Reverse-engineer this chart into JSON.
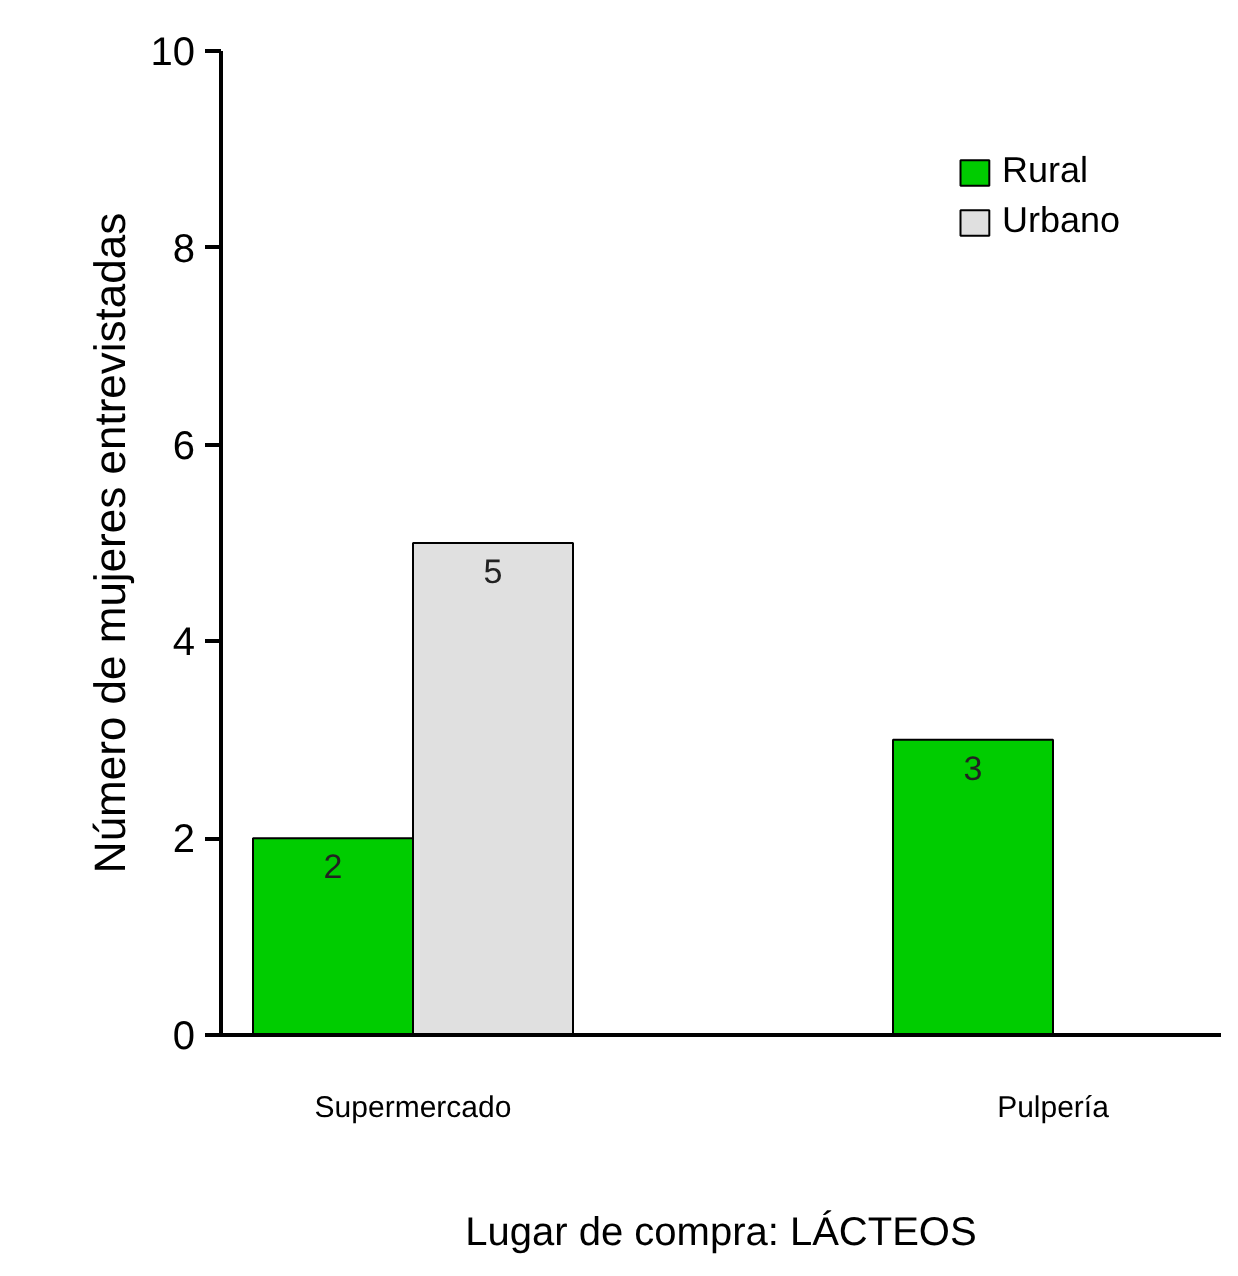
{
  "chart_data": {
    "type": "bar",
    "xlabel": "Lugar de compra: LÁCTEOS",
    "ylabel": "Número de mujeres entrevistadas",
    "categories": [
      "Supermercado",
      "Pulpería"
    ],
    "series": [
      {
        "name": "Rural",
        "color": "#00cc00",
        "values": [
          2,
          3
        ],
        "value_labels": [
          "2",
          "3"
        ]
      },
      {
        "name": "Urbano",
        "color": "#e0e0e0",
        "values": [
          5,
          null
        ],
        "value_labels": [
          "5",
          null
        ]
      }
    ],
    "ylim": [
      0,
      10
    ],
    "yticks": [
      0,
      2,
      4,
      6,
      8,
      10
    ],
    "grid": false,
    "legend": "top right"
  }
}
